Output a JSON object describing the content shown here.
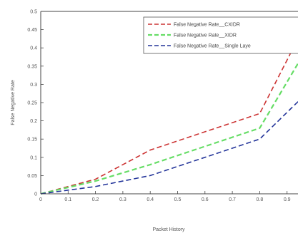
{
  "chart_data": {
    "type": "line",
    "title": "",
    "xlabel": "Packet History",
    "ylabel": "False Negative Rate",
    "xlim": [
      0,
      1
    ],
    "ylim": [
      0,
      0.5
    ],
    "x_ticks": [
      "0",
      "0.1",
      "0.2",
      "0.3",
      "0.4",
      "0.5",
      "0.6",
      "0.7",
      "0.8",
      "0.9"
    ],
    "y_ticks": [
      "0",
      "0.05",
      "0.1",
      "0.15",
      "0.2",
      "0.25",
      "0.3",
      "0.35",
      "0.4",
      "0.45",
      "0.5"
    ],
    "grid": false,
    "legend_position": "top-right",
    "x": [
      0,
      0.2,
      0.4,
      0.8,
      0.95
    ],
    "series": [
      {
        "name": "False Negative Rate__CXIDR",
        "color": "#cc3333",
        "line_style": "dashed",
        "values": [
          0,
          0.04,
          0.12,
          0.22,
          0.44
        ]
      },
      {
        "name": "False Negative Rate__XIDR",
        "color": "#66dd66",
        "line_style": "dashed",
        "values": [
          0,
          0.035,
          0.08,
          0.18,
          0.37
        ]
      },
      {
        "name": "False Negative Rate__Single Laye",
        "color": "#223399",
        "line_style": "dashed",
        "values": [
          0,
          0.02,
          0.05,
          0.15,
          0.26
        ]
      }
    ]
  }
}
